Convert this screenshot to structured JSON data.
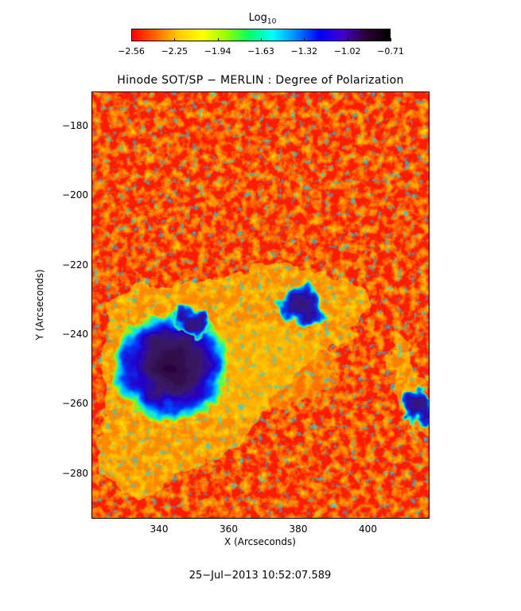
{
  "colorbar": {
    "title_main": "Log",
    "title_sub": "10",
    "ticks": [
      "−2.56",
      "−2.25",
      "−1.94",
      "−1.63",
      "−1.32",
      "−1.02",
      "−0.71"
    ],
    "gradient": [
      "#ff0000",
      "#ff6600",
      "#ffcc00",
      "#ffff00",
      "#99ff00",
      "#00ff66",
      "#00ffff",
      "#0088ff",
      "#0000ff",
      "#4400cc",
      "#2a0033",
      "#000000"
    ]
  },
  "title": "Hinode SOT/SP − MERLIN : Degree of Polarization",
  "axes": {
    "xlabel": "X (Arcseconds)",
    "ylabel": "Y (Arcseconds)",
    "xticks": [
      "340",
      "360",
      "380",
      "400"
    ],
    "yticks": [
      "−180",
      "−200",
      "−220",
      "−240",
      "−260",
      "−280"
    ]
  },
  "map": {
    "description_colors": {
      "background": "#ff1a00",
      "mid": "#ffee00",
      "high": "#0033ff",
      "core": "#2a0033"
    }
  },
  "timestamp": "25−Jul−2013 10:52:07.589"
}
